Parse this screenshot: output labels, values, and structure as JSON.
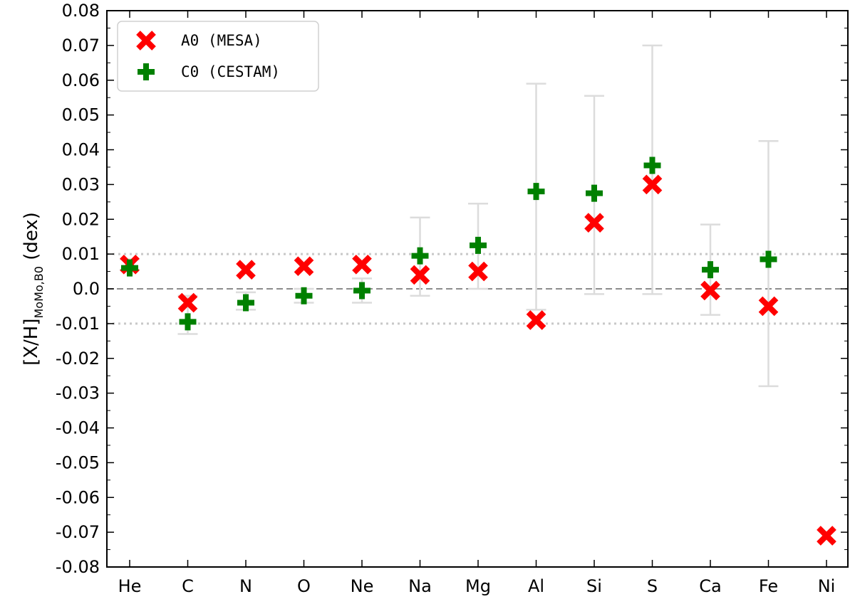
{
  "chart_data": {
    "type": "scatter",
    "ylabel_main": "[X/H]",
    "ylabel_sub": "MoMo,B0",
    "ylabel_unit": "(dex)",
    "xlabel": "",
    "ylim": [
      -0.08,
      0.08
    ],
    "yticks": [
      0.08,
      0.07,
      0.06,
      0.05,
      0.04,
      0.03,
      0.02,
      0.01,
      0.0,
      -0.01,
      -0.02,
      -0.03,
      -0.04,
      -0.05,
      -0.06,
      -0.07,
      -0.08
    ],
    "ytick_labels": [
      "0.08",
      "0.07",
      "0.06",
      "0.05",
      "0.04",
      "0.03",
      "0.02",
      "0.01",
      "0.0",
      "-0.01",
      "-0.02",
      "-0.03",
      "-0.04",
      "-0.05",
      "-0.06",
      "-0.07",
      "-0.08"
    ],
    "categories": [
      "He",
      "C",
      "N",
      "O",
      "Ne",
      "Na",
      "Mg",
      "Al",
      "Si",
      "S",
      "Ca",
      "Fe",
      "Ni"
    ],
    "reference_lines": {
      "zero": 0.0,
      "band": [
        -0.01,
        0.01
      ]
    },
    "error_bars": [
      {
        "element": "He",
        "low": 0.0055,
        "high": 0.0085
      },
      {
        "element": "C",
        "low": -0.013,
        "high": -0.002
      },
      {
        "element": "N",
        "low": -0.006,
        "high": -0.001
      },
      {
        "element": "O",
        "low": -0.004,
        "high": 0.0
      },
      {
        "element": "Ne",
        "low": -0.004,
        "high": 0.003
      },
      {
        "element": "Na",
        "low": -0.002,
        "high": 0.0205
      },
      {
        "element": "Mg",
        "low": 0.0,
        "high": 0.0245
      },
      {
        "element": "Al",
        "low": -0.006,
        "high": 0.059
      },
      {
        "element": "Si",
        "low": -0.0015,
        "high": 0.0555
      },
      {
        "element": "S",
        "low": -0.0015,
        "high": 0.07
      },
      {
        "element": "Ca",
        "low": -0.0075,
        "high": 0.0185
      },
      {
        "element": "Fe",
        "low": -0.028,
        "high": 0.0425
      }
    ],
    "series": [
      {
        "name": "A0 (MESA)",
        "marker": "x",
        "color": "#ff0000",
        "values": [
          0.007,
          -0.004,
          0.0055,
          0.0065,
          0.007,
          0.004,
          0.005,
          -0.009,
          0.019,
          0.03,
          -0.0005,
          -0.005,
          -0.071
        ]
      },
      {
        "name": "C0 (CESTAM)",
        "marker": "plus",
        "color": "#008000",
        "values": [
          0.006,
          -0.0095,
          -0.004,
          -0.002,
          -0.0005,
          0.0095,
          0.0125,
          0.028,
          0.0275,
          0.0355,
          0.0055,
          0.0085,
          null
        ]
      }
    ],
    "legend_position": "top-left",
    "grid": false
  }
}
